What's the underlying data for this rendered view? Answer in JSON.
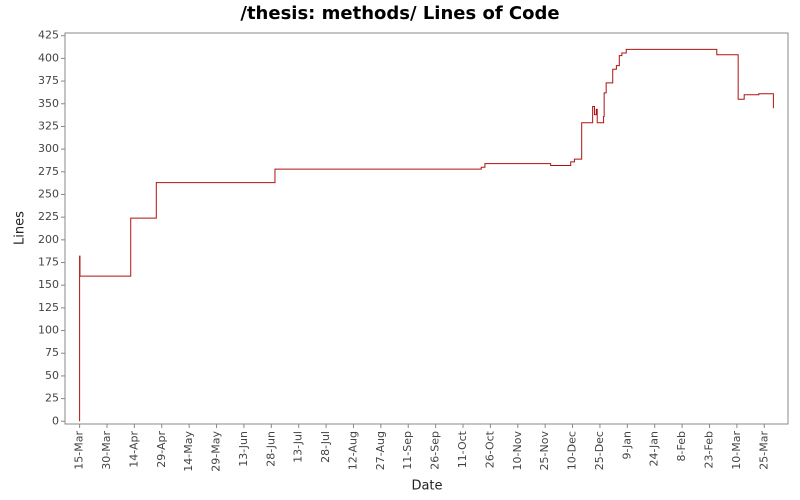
{
  "chart_data": {
    "type": "line",
    "step": true,
    "title": "/thesis: methods/ Lines of Code",
    "x_label": "Date",
    "y_label": "Lines",
    "series": [
      {
        "name": "Lines",
        "color": "#b01010",
        "x": [
          0,
          0,
          0.2,
          28,
          42,
          107,
          220,
          222,
          258,
          269,
          271,
          275,
          281,
          282,
          283,
          283.5,
          287,
          287.3,
          288.4,
          292,
          294,
          295.6,
          297,
          299.4,
          349,
          360.7,
          364,
          372,
          380
        ],
        "values": [
          0,
          182,
          160,
          224,
          263,
          278,
          280,
          284,
          282,
          286,
          289,
          329,
          347,
          338,
          344,
          329,
          336,
          362,
          373,
          388,
          392,
          403,
          406,
          410,
          404,
          355,
          360,
          361,
          345
        ]
      }
    ],
    "xlim": [
      -8,
      388
    ],
    "xticks": [
      {
        "value": 0,
        "label": "15-Mar"
      },
      {
        "value": 15,
        "label": "30-Mar"
      },
      {
        "value": 30,
        "label": "14-Apr"
      },
      {
        "value": 45,
        "label": "29-Apr"
      },
      {
        "value": 60,
        "label": "14-May"
      },
      {
        "value": 75,
        "label": "29-May"
      },
      {
        "value": 90,
        "label": "13-Jun"
      },
      {
        "value": 105,
        "label": "28-Jun"
      },
      {
        "value": 120,
        "label": "13-Jul"
      },
      {
        "value": 135,
        "label": "28-Jul"
      },
      {
        "value": 150,
        "label": "12-Aug"
      },
      {
        "value": 165,
        "label": "27-Aug"
      },
      {
        "value": 180,
        "label": "11-Sep"
      },
      {
        "value": 195,
        "label": "26-Sep"
      },
      {
        "value": 210,
        "label": "11-Oct"
      },
      {
        "value": 225,
        "label": "26-Oct"
      },
      {
        "value": 240,
        "label": "10-Nov"
      },
      {
        "value": 255,
        "label": "25-Nov"
      },
      {
        "value": 270,
        "label": "10-Dec"
      },
      {
        "value": 285,
        "label": "25-Dec"
      },
      {
        "value": 300,
        "label": "9-Jan"
      },
      {
        "value": 315,
        "label": "24-Jan"
      },
      {
        "value": 330,
        "label": "8-Feb"
      },
      {
        "value": 345,
        "label": "23-Feb"
      },
      {
        "value": 360,
        "label": "10-Mar"
      },
      {
        "value": 375,
        "label": "25-Mar"
      }
    ],
    "ylim": [
      -3,
      428
    ],
    "yticks": [
      0,
      25,
      50,
      75,
      100,
      125,
      150,
      175,
      200,
      225,
      250,
      275,
      300,
      325,
      350,
      375,
      400,
      425
    ]
  }
}
